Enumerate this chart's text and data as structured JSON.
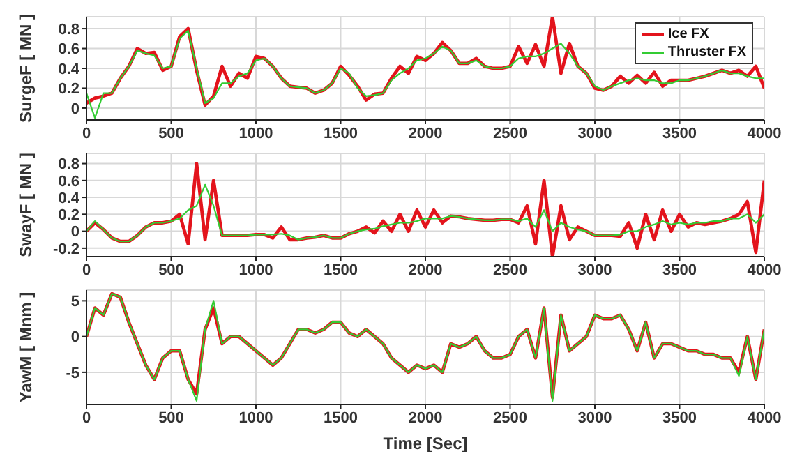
{
  "chart_data": [
    {
      "type": "line",
      "ylabel": "SurgeF [ MN ]",
      "xlim": [
        0,
        4000
      ],
      "xticks": [
        0,
        500,
        1000,
        1500,
        2000,
        2500,
        3000,
        3500,
        4000
      ],
      "ylim": [
        -0.12,
        0.92
      ],
      "yticks": [
        0,
        0.2,
        0.4,
        0.6,
        0.8
      ],
      "grid": true,
      "legend": "top right",
      "x": [
        0,
        50,
        100,
        150,
        200,
        250,
        300,
        350,
        400,
        450,
        500,
        550,
        600,
        650,
        700,
        750,
        800,
        850,
        900,
        950,
        1000,
        1050,
        1100,
        1150,
        1200,
        1250,
        1300,
        1350,
        1400,
        1450,
        1500,
        1550,
        1600,
        1650,
        1700,
        1750,
        1800,
        1850,
        1900,
        1950,
        2000,
        2050,
        2100,
        2150,
        2200,
        2250,
        2300,
        2350,
        2400,
        2450,
        2500,
        2550,
        2600,
        2650,
        2700,
        2750,
        2800,
        2850,
        2900,
        2950,
        3000,
        3050,
        3100,
        3150,
        3200,
        3250,
        3300,
        3350,
        3400,
        3450,
        3500,
        3550,
        3600,
        3650,
        3700,
        3750,
        3800,
        3850,
        3900,
        3950,
        4000
      ],
      "series": [
        {
          "name": "Ice FX",
          "color": "#e3141c",
          "values": [
            0.05,
            0.1,
            0.12,
            0.15,
            0.3,
            0.42,
            0.6,
            0.55,
            0.56,
            0.38,
            0.42,
            0.72,
            0.8,
            0.38,
            0.03,
            0.12,
            0.42,
            0.22,
            0.35,
            0.3,
            0.52,
            0.5,
            0.42,
            0.3,
            0.22,
            0.21,
            0.2,
            0.15,
            0.18,
            0.25,
            0.42,
            0.33,
            0.22,
            0.08,
            0.14,
            0.15,
            0.3,
            0.42,
            0.35,
            0.52,
            0.48,
            0.55,
            0.66,
            0.58,
            0.45,
            0.45,
            0.5,
            0.42,
            0.4,
            0.4,
            0.42,
            0.62,
            0.45,
            0.64,
            0.42,
            0.92,
            0.35,
            0.65,
            0.42,
            0.35,
            0.2,
            0.18,
            0.22,
            0.32,
            0.25,
            0.33,
            0.25,
            0.36,
            0.22,
            0.28,
            0.28,
            0.28,
            0.3,
            0.32,
            0.35,
            0.38,
            0.35,
            0.38,
            0.32,
            0.42,
            0.2
          ]
        },
        {
          "name": "Thruster FX",
          "color": "#33cc33",
          "values": [
            0.15,
            -0.1,
            0.15,
            0.15,
            0.3,
            0.42,
            0.58,
            0.55,
            0.53,
            0.4,
            0.42,
            0.7,
            0.78,
            0.4,
            0.05,
            0.1,
            0.25,
            0.25,
            0.32,
            0.35,
            0.48,
            0.5,
            0.42,
            0.3,
            0.22,
            0.21,
            0.2,
            0.15,
            0.18,
            0.25,
            0.4,
            0.35,
            0.2,
            0.12,
            0.13,
            0.15,
            0.28,
            0.35,
            0.4,
            0.48,
            0.5,
            0.55,
            0.62,
            0.58,
            0.45,
            0.45,
            0.48,
            0.42,
            0.4,
            0.4,
            0.42,
            0.5,
            0.52,
            0.52,
            0.55,
            0.6,
            0.65,
            0.55,
            0.42,
            0.35,
            0.22,
            0.18,
            0.22,
            0.25,
            0.28,
            0.3,
            0.28,
            0.28,
            0.25,
            0.25,
            0.28,
            0.28,
            0.3,
            0.32,
            0.35,
            0.38,
            0.35,
            0.35,
            0.32,
            0.3,
            0.3
          ]
        }
      ]
    },
    {
      "type": "line",
      "ylabel": "SwayF [ MN ]",
      "xlim": [
        0,
        4000
      ],
      "xticks": [
        0,
        500,
        1000,
        1500,
        2000,
        2500,
        3000,
        3500,
        4000
      ],
      "ylim": [
        -0.3,
        0.92
      ],
      "yticks": [
        -0.2,
        0,
        0.2,
        0.4,
        0.6,
        0.8
      ],
      "grid": true,
      "x": [
        0,
        50,
        100,
        150,
        200,
        250,
        300,
        350,
        400,
        450,
        500,
        550,
        600,
        650,
        700,
        750,
        800,
        850,
        900,
        950,
        1000,
        1050,
        1100,
        1150,
        1200,
        1250,
        1300,
        1350,
        1400,
        1450,
        1500,
        1550,
        1600,
        1650,
        1700,
        1750,
        1800,
        1850,
        1900,
        1950,
        2000,
        2050,
        2100,
        2150,
        2200,
        2250,
        2300,
        2350,
        2400,
        2450,
        2500,
        2550,
        2600,
        2650,
        2700,
        2750,
        2800,
        2850,
        2900,
        2950,
        3000,
        3050,
        3100,
        3150,
        3200,
        3250,
        3300,
        3350,
        3400,
        3450,
        3500,
        3550,
        3600,
        3650,
        3700,
        3750,
        3800,
        3850,
        3900,
        3950,
        4000
      ],
      "series": [
        {
          "color": "#e3141c",
          "values": [
            0,
            0.1,
            0.02,
            -0.08,
            -0.12,
            -0.12,
            -0.05,
            0.05,
            0.1,
            0.1,
            0.12,
            0.2,
            -0.15,
            0.8,
            -0.1,
            0.6,
            -0.05,
            -0.05,
            -0.05,
            -0.05,
            -0.04,
            -0.04,
            -0.08,
            0.05,
            -0.1,
            -0.1,
            -0.08,
            -0.07,
            -0.05,
            -0.08,
            -0.08,
            -0.03,
            0,
            0.05,
            -0.02,
            0.12,
            0,
            0.2,
            0,
            0.25,
            0.05,
            0.25,
            0.1,
            0.18,
            0.17,
            0.15,
            0.14,
            0.13,
            0.13,
            0.14,
            0.14,
            0.1,
            0.3,
            -0.15,
            0.6,
            -0.3,
            0.3,
            -0.1,
            0.05,
            0,
            -0.05,
            -0.05,
            -0.05,
            -0.06,
            0.1,
            -0.2,
            0.2,
            -0.1,
            0.25,
            0,
            0.2,
            0.05,
            0.1,
            0.08,
            0.1,
            0.12,
            0.15,
            0.2,
            0.35,
            -0.25,
            0.6
          ]
        },
        {
          "color": "#33cc33",
          "values": [
            0,
            0.12,
            0.02,
            -0.08,
            -0.12,
            -0.12,
            -0.05,
            0.05,
            0.1,
            0.1,
            0.12,
            0.15,
            0.25,
            0.3,
            0.55,
            0.3,
            -0.05,
            -0.05,
            -0.05,
            -0.05,
            -0.04,
            -0.04,
            -0.04,
            -0.03,
            -0.05,
            -0.1,
            -0.08,
            -0.07,
            -0.05,
            -0.08,
            -0.08,
            -0.03,
            0,
            0.02,
            0.03,
            0.06,
            0.08,
            0.1,
            0.1,
            0.12,
            0.15,
            0.15,
            0.15,
            0.18,
            0.17,
            0.15,
            0.14,
            0.13,
            0.13,
            0.14,
            0.14,
            0.12,
            0.15,
            0.05,
            0.25,
            0,
            0.1,
            0.05,
            0.02,
            0,
            -0.05,
            -0.05,
            -0.05,
            -0.04,
            0,
            0,
            0.05,
            0.08,
            0.12,
            0.08,
            0.1,
            0.08,
            0.1,
            0.1,
            0.12,
            0.12,
            0.15,
            0.15,
            0.2,
            0.1,
            0.2
          ]
        }
      ]
    },
    {
      "type": "line",
      "ylabel": "YawM [ Mnm ]",
      "xlabel": "Time [Sec]",
      "xlim": [
        0,
        4000
      ],
      "xticks": [
        0,
        500,
        1000,
        1500,
        2000,
        2500,
        3000,
        3500,
        4000
      ],
      "ylim": [
        -9.5,
        6.5
      ],
      "yticks": [
        -5,
        0,
        5
      ],
      "grid": true,
      "x": [
        0,
        50,
        100,
        150,
        200,
        250,
        300,
        350,
        400,
        450,
        500,
        550,
        600,
        650,
        700,
        750,
        800,
        850,
        900,
        950,
        1000,
        1050,
        1100,
        1150,
        1200,
        1250,
        1300,
        1350,
        1400,
        1450,
        1500,
        1550,
        1600,
        1650,
        1700,
        1750,
        1800,
        1850,
        1900,
        1950,
        2000,
        2050,
        2100,
        2150,
        2200,
        2250,
        2300,
        2350,
        2400,
        2450,
        2500,
        2550,
        2600,
        2650,
        2700,
        2750,
        2800,
        2850,
        2900,
        2950,
        3000,
        3050,
        3100,
        3150,
        3200,
        3250,
        3300,
        3350,
        3400,
        3450,
        3500,
        3550,
        3600,
        3650,
        3700,
        3750,
        3800,
        3850,
        3900,
        3950,
        4000
      ],
      "series": [
        {
          "color": "#e3141c",
          "values": [
            0,
            4,
            3,
            6,
            5.5,
            2,
            -1,
            -4,
            -6,
            -3,
            -2,
            -2,
            -6,
            -8,
            1,
            4,
            -1,
            0,
            0,
            -1,
            -2,
            -3,
            -4,
            -3,
            -1,
            1,
            1,
            0.5,
            1,
            2,
            2,
            0.5,
            0,
            1,
            0,
            -1,
            -3,
            -4,
            -5,
            -4,
            -4.5,
            -4,
            -5,
            -1,
            -1.5,
            -1,
            0,
            -2,
            -3,
            -3,
            -2.5,
            0,
            1,
            -3,
            4,
            -8.5,
            3,
            -2,
            -1,
            0,
            3,
            2.5,
            2.5,
            3,
            1,
            -2,
            2,
            -3,
            -1,
            -1,
            -1.5,
            -2,
            -2,
            -2.5,
            -2.5,
            -3,
            -3,
            -5,
            0,
            -6,
            1
          ]
        },
        {
          "color": "#33cc33",
          "values": [
            0,
            4,
            3,
            6,
            5.5,
            2,
            -1,
            -4,
            -6,
            -3,
            -2,
            -2,
            -6,
            -9,
            1,
            5,
            -1,
            0,
            0,
            -1,
            -2,
            -3,
            -4,
            -3,
            -1,
            1,
            1,
            0.5,
            1,
            2,
            2,
            0.5,
            0,
            1,
            0,
            -1,
            -3,
            -4,
            -5,
            -4,
            -4.5,
            -4,
            -5,
            -1,
            -1.5,
            -1,
            0,
            -2,
            -3,
            -3,
            -2.5,
            0,
            1,
            -3,
            4,
            -9,
            3,
            -2,
            -1,
            0,
            3,
            2.5,
            2.5,
            3,
            1,
            -2,
            2,
            -3,
            -1,
            -1,
            -1.5,
            -2,
            -2,
            -2.5,
            -2.5,
            -3,
            -3,
            -5.5,
            0,
            -6,
            1
          ]
        }
      ]
    }
  ]
}
